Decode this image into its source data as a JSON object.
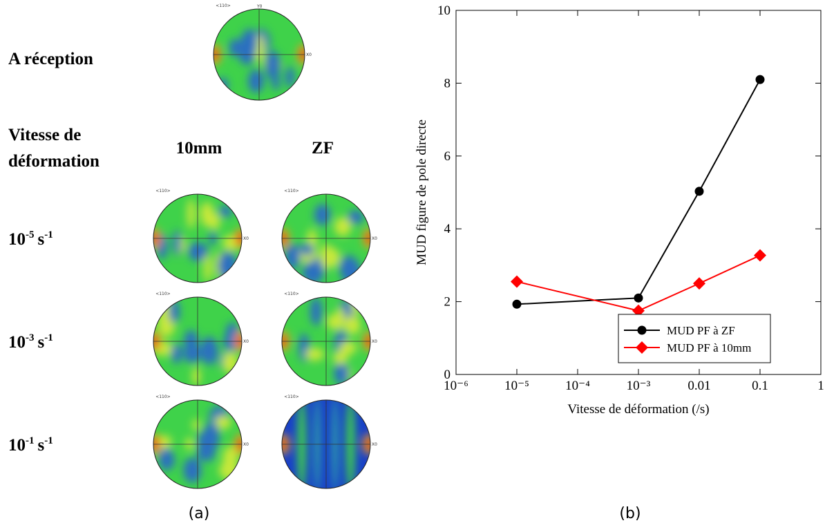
{
  "panel_a": {
    "caption": "(a)",
    "as_received": "A réception",
    "rate_heading": [
      "Vitesse de",
      "déformation"
    ],
    "columns": [
      "10mm",
      "ZF"
    ],
    "rows": [
      {
        "base": "10",
        "exp": "-5",
        "unit": "s",
        "unit_exp": "-1"
      },
      {
        "base": "10",
        "exp": "-3",
        "unit": "s",
        "unit_exp": "-1"
      },
      {
        "base": "10",
        "exp": "-1",
        "unit": "s",
        "unit_exp": "-1"
      }
    ],
    "pole_figure_labels": {
      "direction": "<110>",
      "x": "X0",
      "y": "Y0"
    }
  },
  "panel_b": {
    "caption": "(b)"
  },
  "chart_data": {
    "type": "line",
    "x_label": "Vitesse de déformation (/s)",
    "y_label": "MUD  figure de pole directe",
    "xscale": "log",
    "xlim": [
      1e-06,
      1
    ],
    "xticks": [
      {
        "value": 1e-06,
        "label": "10⁻⁶"
      },
      {
        "value": 1e-05,
        "label": "10⁻⁵"
      },
      {
        "value": 0.0001,
        "label": "10⁻⁴"
      },
      {
        "value": 0.001,
        "label": "10⁻³"
      },
      0.01,
      0.1,
      1
    ],
    "ylim": [
      0,
      10
    ],
    "yticks": [
      0,
      2,
      4,
      6,
      8,
      10
    ],
    "legend": "lower right",
    "series": [
      {
        "name": "MUD PF  à ZF",
        "color": "#000000",
        "marker": "circle",
        "x": [
          1e-05,
          0.001,
          0.01,
          0.1
        ],
        "values": [
          1.93,
          2.1,
          5.03,
          8.1
        ]
      },
      {
        "name": "MUD PF à 10mm",
        "color": "#ff0000",
        "marker": "diamond",
        "x": [
          1e-05,
          0.001,
          0.01,
          0.1
        ],
        "values": [
          2.55,
          1.75,
          2.5,
          3.27
        ]
      }
    ]
  }
}
